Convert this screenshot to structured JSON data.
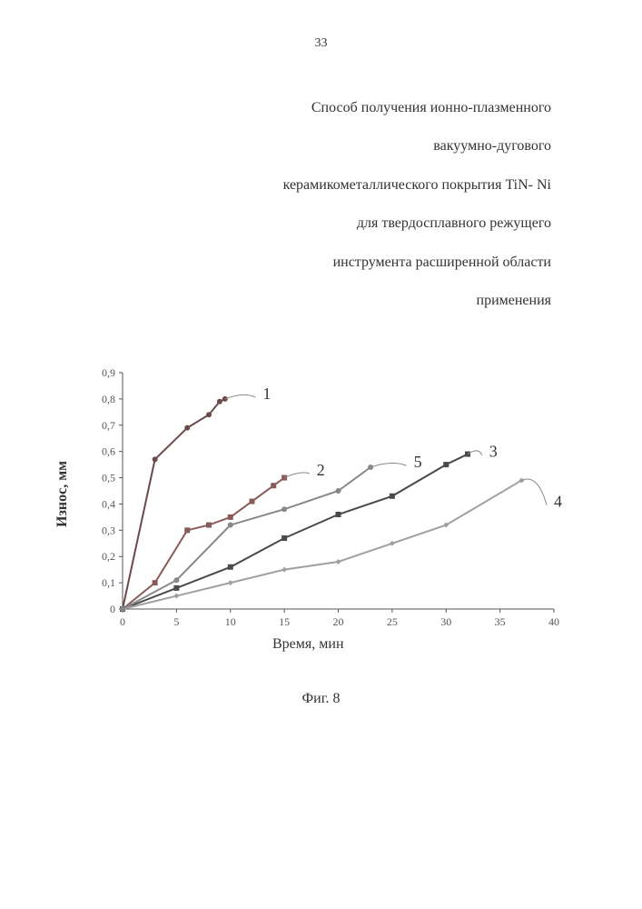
{
  "page_number": "33",
  "title_lines": [
    "Способ получения ионно-плазменного",
    "вакуумно-дугового",
    "керамикометаллического покрытия TiN- Ni",
    "для твердосплавного режущего",
    "инструмента расширенной области",
    "применения"
  ],
  "figure_label": "Фиг. 8",
  "chart": {
    "type": "line",
    "xlabel": "Время, мин",
    "ylabel": "Износ, мм",
    "xlim": [
      0,
      40
    ],
    "ylim": [
      0,
      0.9
    ],
    "xtick_step": 5,
    "ytick_step": 0.1,
    "xticks": [
      0,
      5,
      10,
      15,
      20,
      25,
      30,
      35,
      40
    ],
    "yticks": [
      0,
      0.1,
      0.2,
      0.3,
      0.4,
      0.5,
      0.6,
      0.7,
      0.8,
      0.9
    ],
    "ytick_labels": [
      "0",
      "0,1",
      "0,2",
      "0,3",
      "0,4",
      "0,5",
      "0,6",
      "0,7",
      "0,8",
      "0,9"
    ],
    "background_color": "#ffffff",
    "axis_color": "#555555",
    "label_fontsize": 16,
    "tick_fontsize": 12,
    "series_label_fontsize": 18,
    "line_width": 2,
    "marker_size": 3,
    "series": [
      {
        "id": "1",
        "label": "1",
        "color": "#6b4a4a",
        "marker": "circle",
        "x": [
          0,
          3,
          6,
          8,
          9,
          9.5
        ],
        "y": [
          0,
          0.57,
          0.69,
          0.74,
          0.79,
          0.8
        ],
        "label_pos": {
          "x": 13,
          "y": 0.82
        },
        "leader_from": {
          "x": 9.5,
          "y": 0.8
        }
      },
      {
        "id": "2",
        "label": "2",
        "color": "#8a5a5a",
        "marker": "square",
        "x": [
          0,
          3,
          6,
          8,
          10,
          12,
          14,
          15
        ],
        "y": [
          0,
          0.1,
          0.3,
          0.32,
          0.35,
          0.41,
          0.47,
          0.5
        ],
        "label_pos": {
          "x": 18,
          "y": 0.53
        },
        "leader_from": {
          "x": 15,
          "y": 0.5
        }
      },
      {
        "id": "3",
        "label": "3",
        "color": "#4a4a4a",
        "marker": "square",
        "x": [
          0,
          5,
          10,
          15,
          20,
          25,
          30,
          32
        ],
        "y": [
          0,
          0.08,
          0.16,
          0.27,
          0.36,
          0.43,
          0.55,
          0.59
        ],
        "label_pos": {
          "x": 34,
          "y": 0.6
        },
        "leader_from": {
          "x": 32,
          "y": 0.59
        }
      },
      {
        "id": "4",
        "label": "4",
        "color": "#a0a0a0",
        "marker": "diamond",
        "x": [
          0,
          5,
          10,
          15,
          20,
          25,
          30,
          37
        ],
        "y": [
          0,
          0.05,
          0.1,
          0.15,
          0.18,
          0.25,
          0.32,
          0.49
        ],
        "label_pos": {
          "x": 40,
          "y": 0.41
        },
        "leader_from": {
          "x": 37,
          "y": 0.49
        }
      },
      {
        "id": "5",
        "label": "5",
        "color": "#888888",
        "marker": "circle",
        "x": [
          0,
          5,
          10,
          15,
          20,
          23
        ],
        "y": [
          0,
          0.11,
          0.32,
          0.38,
          0.45,
          0.54
        ],
        "label_pos": {
          "x": 27,
          "y": 0.56
        },
        "leader_from": {
          "x": 23,
          "y": 0.54
        }
      }
    ]
  }
}
